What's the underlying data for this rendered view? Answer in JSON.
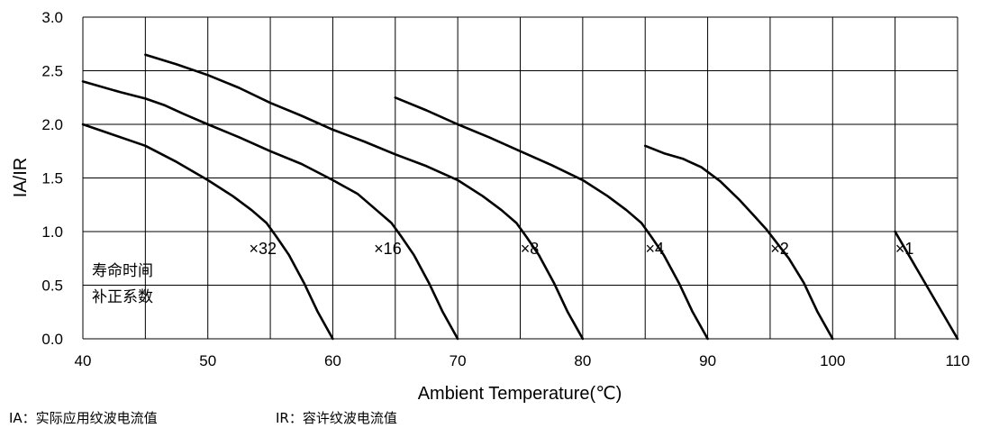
{
  "chart_data": {
    "type": "line",
    "title": "",
    "xlabel": "Ambient Temperature(℃)",
    "ylabel": "IA/IR",
    "xlim": [
      40,
      110
    ],
    "ylim": [
      0,
      3.0
    ],
    "x_ticks": [
      "40",
      "50",
      "60",
      "70",
      "80",
      "90",
      "100",
      "110"
    ],
    "y_ticks": [
      "0.0",
      "0.5",
      "1.0",
      "1.5",
      "2.0",
      "2.5",
      "3.0"
    ],
    "grid": true,
    "series": [
      {
        "name": "×32a",
        "points": [
          [
            40,
            2.0
          ],
          [
            42,
            1.92
          ],
          [
            45,
            1.8
          ],
          [
            47.5,
            1.65
          ],
          [
            50,
            1.48
          ],
          [
            52,
            1.33
          ],
          [
            53.5,
            1.2
          ],
          [
            54.7,
            1.08
          ],
          [
            55.5,
            0.95
          ],
          [
            56.5,
            0.78
          ],
          [
            57.7,
            0.52
          ],
          [
            58.8,
            0.25
          ],
          [
            60,
            0.0
          ]
        ]
      },
      {
        "name": "×32b",
        "points": [
          [
            40,
            2.4
          ],
          [
            43,
            2.3
          ],
          [
            45,
            2.24
          ],
          [
            46.5,
            2.18
          ],
          [
            48,
            2.1
          ],
          [
            50,
            2.0
          ],
          [
            52.5,
            1.88
          ],
          [
            55,
            1.75
          ],
          [
            57.5,
            1.63
          ],
          [
            60,
            1.48
          ],
          [
            62,
            1.35
          ],
          [
            63.5,
            1.2
          ],
          [
            64.7,
            1.08
          ],
          [
            65.5,
            0.95
          ],
          [
            66.5,
            0.78
          ],
          [
            67.7,
            0.52
          ],
          [
            68.8,
            0.25
          ],
          [
            70,
            0.0
          ]
        ]
      },
      {
        "name": "×16",
        "points": [
          [
            45,
            2.65
          ],
          [
            47.5,
            2.56
          ],
          [
            50,
            2.46
          ],
          [
            52.5,
            2.34
          ],
          [
            55,
            2.2
          ],
          [
            57.5,
            2.08
          ],
          [
            60,
            1.95
          ],
          [
            62.5,
            1.84
          ],
          [
            65,
            1.72
          ],
          [
            67.5,
            1.61
          ],
          [
            70,
            1.48
          ],
          [
            72,
            1.33
          ],
          [
            73.5,
            1.2
          ],
          [
            74.7,
            1.08
          ],
          [
            75.5,
            0.95
          ],
          [
            76.5,
            0.78
          ],
          [
            77.7,
            0.52
          ],
          [
            78.8,
            0.25
          ],
          [
            80,
            0.0
          ]
        ]
      },
      {
        "name": "×8",
        "points": [
          [
            65,
            2.25
          ],
          [
            67.5,
            2.13
          ],
          [
            70,
            2.0
          ],
          [
            72.5,
            1.88
          ],
          [
            75,
            1.75
          ],
          [
            77.5,
            1.62
          ],
          [
            80,
            1.48
          ],
          [
            82,
            1.33
          ],
          [
            83.5,
            1.2
          ],
          [
            84.7,
            1.08
          ],
          [
            85.5,
            0.95
          ],
          [
            86.5,
            0.78
          ],
          [
            87.7,
            0.52
          ],
          [
            88.8,
            0.25
          ],
          [
            90,
            0.0
          ]
        ]
      },
      {
        "name": "×4",
        "points": [
          [
            85,
            1.8
          ],
          [
            86.5,
            1.73
          ],
          [
            88,
            1.68
          ],
          [
            89.5,
            1.6
          ],
          [
            91,
            1.47
          ],
          [
            92.5,
            1.3
          ],
          [
            93.7,
            1.15
          ],
          [
            94.7,
            1.02
          ],
          [
            95.5,
            0.9
          ],
          [
            96.5,
            0.75
          ],
          [
            97.7,
            0.52
          ],
          [
            98.8,
            0.25
          ],
          [
            100,
            0.0
          ]
        ]
      },
      {
        "name": "×1",
        "points": [
          [
            105,
            1.0
          ],
          [
            110,
            0.0
          ]
        ]
      }
    ],
    "multiplier_labels": [
      {
        "text": "×32",
        "x": 55.5,
        "y": 0.85
      },
      {
        "text": "×16",
        "x": 65.5,
        "y": 0.85
      },
      {
        "text": "×8",
        "x": 76.5,
        "y": 0.85
      },
      {
        "text": "×4",
        "x": 86.5,
        "y": 0.85
      },
      {
        "text": "×2",
        "x": 96.5,
        "y": 0.85
      },
      {
        "text": "×1",
        "x": 106.5,
        "y": 0.85
      }
    ],
    "annotation": [
      "寿命时间",
      "补正系数"
    ],
    "footnotes": [
      "IA：实际应用纹波电流值",
      "IR：容许纹波电流值"
    ]
  }
}
